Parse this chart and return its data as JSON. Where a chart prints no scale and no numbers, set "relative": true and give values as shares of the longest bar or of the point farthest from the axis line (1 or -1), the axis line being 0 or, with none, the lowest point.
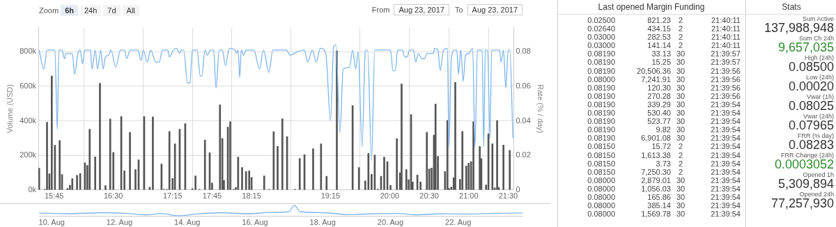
{
  "chart_data": [
    {
      "type": "bar",
      "ylabel": "Volume (USD)",
      "y2label": "Rate (% / day)",
      "xlim": [
        15.55,
        21.57
      ],
      "xticks": [
        {
          "value": 15.75,
          "label": "15:45"
        },
        {
          "value": 16.5,
          "label": "16:30"
        },
        {
          "value": 17.25,
          "label": "17:15"
        },
        {
          "value": 17.75,
          "label": "17:45"
        },
        {
          "value": 18.25,
          "label": "18:15"
        },
        {
          "value": 19.25,
          "label": "19:15"
        },
        {
          "value": 20,
          "label": "20:00"
        },
        {
          "value": 20.5,
          "label": "20:30"
        },
        {
          "value": 21,
          "label": "21:00"
        },
        {
          "value": 21.5,
          "label": "21:30"
        }
      ],
      "ylim": [
        0,
        940000
      ],
      "yticks": [
        {
          "value": 0,
          "label": "0k"
        },
        {
          "value": 200000,
          "label": "200k"
        },
        {
          "value": 400000,
          "label": "400k"
        },
        {
          "value": 600000,
          "label": "600k"
        },
        {
          "value": 800000,
          "label": "800k"
        }
      ],
      "y2lim": [
        0,
        0.094
      ],
      "y2ticks": [
        0,
        0.02,
        0.04,
        0.06,
        0.08
      ],
      "grid": true,
      "marker": "none",
      "annotations": [
        "Zoom",
        "6h",
        "24h",
        "7d",
        "All",
        "From",
        "Aug 23, 2017",
        "To",
        "Aug 23, 2017"
      ],
      "series": [
        {
          "type": "bar",
          "color": "#555555",
          "x": [
            15.56,
            15.63,
            15.66,
            15.69,
            15.72,
            15.76,
            15.82,
            15.85,
            15.92,
            15.95,
            15.98,
            16.04,
            16.08,
            16.14,
            16.17,
            16.2,
            16.27,
            16.33,
            16.4,
            16.46,
            16.5,
            16.6,
            16.64,
            16.71,
            16.78,
            16.82,
            16.89,
            16.96,
            17.0,
            17.11,
            17.14,
            17.18,
            17.21,
            17.25,
            17.28,
            17.34,
            17.41,
            17.5,
            17.54,
            17.59,
            17.66,
            17.72,
            17.75,
            17.85,
            17.88,
            17.9,
            17.95,
            17.98,
            18.02,
            18.05,
            18.08,
            18.13,
            18.18,
            18.22,
            18.25,
            18.41,
            18.47,
            18.53,
            18.58,
            18.64,
            18.7,
            18.8,
            18.86,
            18.92,
            19.03,
            19.13,
            19.2,
            19.33,
            19.53,
            19.61,
            19.69,
            19.73,
            19.77,
            19.81,
            19.85,
            19.89,
            19.93,
            19.97,
            20.01,
            20.09,
            20.13,
            20.15,
            20.21,
            20.24,
            20.27,
            20.29,
            20.35,
            20.39,
            20.47,
            20.5,
            20.53,
            20.56,
            20.58,
            20.61,
            20.7,
            20.73,
            20.75,
            20.78,
            20.81,
            20.83,
            20.89,
            20.92,
            20.97,
            21.0,
            21.03,
            21.06,
            21.14,
            21.16,
            21.22,
            21.25,
            21.3,
            21.33,
            21.36,
            21.38,
            21.44,
            21.52
          ],
          "values": [
            126000,
            4000,
            392000,
            94000,
            660000,
            259000,
            286000,
            90000,
            9000,
            27000,
            65000,
            85000,
            96000,
            157000,
            142000,
            352000,
            191000,
            618000,
            25000,
            411000,
            218000,
            425000,
            111000,
            333000,
            118000,
            174000,
            425000,
            16000,
            423000,
            150000,
            4000,
            4000,
            338000,
            66000,
            267000,
            352000,
            384000,
            8000,
            82000,
            4000,
            289000,
            216000,
            40000,
            493000,
            298000,
            55000,
            364000,
            395000,
            4000,
            14000,
            190000,
            130000,
            107000,
            111000,
            72000,
            82000,
            4000,
            337000,
            252000,
            412000,
            308000,
            4000,
            182000,
            204000,
            239000,
            267000,
            79000,
            805000,
            489000,
            130000,
            52000,
            211000,
            91000,
            202000,
            5000,
            79000,
            190000,
            163000,
            27000,
            297000,
            100000,
            614000,
            118000,
            59000,
            436000,
            46000,
            87000,
            46000,
            333000,
            122000,
            127000,
            317000,
            498000,
            194000,
            107000,
            403000,
            9000,
            17000,
            70000,
            623000,
            61000,
            338000,
            139000,
            155000,
            164000,
            395000,
            252000,
            181000,
            29000,
            325000,
            267000,
            12000,
            402000,
            14000,
            260000,
            230000
          ]
        },
        {
          "type": "line",
          "axis": "y2",
          "color": "#7cb5ec",
          "x": [
            15.56,
            15.62,
            15.66,
            15.76,
            15.79,
            15.81,
            15.85,
            15.88,
            15.9,
            15.98,
            16.01,
            16.05,
            16.08,
            16.11,
            16.14,
            16.21,
            16.23,
            16.27,
            16.3,
            16.34,
            16.37,
            16.4,
            16.44,
            16.47,
            16.53,
            16.59,
            16.64,
            16.67,
            16.71,
            16.81,
            16.85,
            16.88,
            16.93,
            16.97,
            17.04,
            17.08,
            17.12,
            17.19,
            17.21,
            17.26,
            17.3,
            17.34,
            17.36,
            17.39,
            17.44,
            17.47,
            17.5,
            17.56,
            17.6,
            17.62,
            17.66,
            17.69,
            17.73,
            17.77,
            17.8,
            17.84,
            17.88,
            17.92,
            17.96,
            17.98,
            18.04,
            18.06,
            18.08,
            18.1,
            18.12,
            18.15,
            18.18,
            18.28,
            18.35,
            18.4,
            18.47,
            18.52,
            18.69,
            18.74,
            18.83,
            18.92,
            18.96,
            19.02,
            19.07,
            19.12,
            19.19,
            19.25,
            19.29,
            19.32,
            19.37,
            19.41,
            19.49,
            19.53,
            19.57,
            19.6,
            19.65,
            19.69,
            19.72,
            19.77,
            19.81,
            19.97,
            20.01,
            20.04,
            20.07,
            20.1,
            20.16,
            20.19,
            20.22,
            20.25,
            20.3,
            20.33,
            20.36,
            20.41,
            20.44,
            20.47,
            20.55,
            20.57,
            20.61,
            20.64,
            20.68,
            20.73,
            20.75,
            20.78,
            20.82,
            20.85,
            20.87,
            20.9,
            20.93,
            20.96,
            21.0,
            21.05,
            21.08,
            21.11,
            21.17,
            21.19,
            21.21,
            21.24,
            21.27,
            21.29,
            21.39,
            21.41,
            21.44,
            21.47,
            21.5,
            21.52,
            21.56
          ],
          "values": [
            0.081,
            0.07,
            0.081,
            0.081,
            0.035,
            0.081,
            0.081,
            0.076,
            0.079,
            0.079,
            0.067,
            0.079,
            0.081,
            0.073,
            0.081,
            0.081,
            0.07,
            0.081,
            0.07,
            0.081,
            0.07,
            0.077,
            0.078,
            0.081,
            0.071,
            0.081,
            0.081,
            0.076,
            0.081,
            0.081,
            0.075,
            0.081,
            0.074,
            0.081,
            0.074,
            0.074,
            0.081,
            0.081,
            0.077,
            0.081,
            0.082,
            0.079,
            0.081,
            0.081,
            0.062,
            0.062,
            0.081,
            0.081,
            0.066,
            0.066,
            0.081,
            0.078,
            0.081,
            0.081,
            0.059,
            0.081,
            0.081,
            0.072,
            0.081,
            0.082,
            0.081,
            0.079,
            0.081,
            0.065,
            0.081,
            0.078,
            0.081,
            0.081,
            0.07,
            0.081,
            0.068,
            0.081,
            0.081,
            0.078,
            0.08,
            0.081,
            0.074,
            0.081,
            0.074,
            0.082,
            0.079,
            0.04,
            0.083,
            0.084,
            0.033,
            0.07,
            0.071,
            0.081,
            0.07,
            0.08,
            0.025,
            0.08,
            0.081,
            0.017,
            0.081,
            0.081,
            0.081,
            0.069,
            0.069,
            0.081,
            0.081,
            0.077,
            0.077,
            0.081,
            0.081,
            0.074,
            0.079,
            0.076,
            0.076,
            0.079,
            0.079,
            0.082,
            0.081,
            0.069,
            0.081,
            0.082,
            0.025,
            0.076,
            0.081,
            0.081,
            0.067,
            0.081,
            0.063,
            0.078,
            0.079,
            0.082,
            0.025,
            0.081,
            0.081,
            0.025,
            0.081,
            0.081,
            0.03,
            0.081,
            0.081,
            0.074,
            0.081,
            0.059,
            0.081,
            0.081,
            0.03
          ]
        }
      ]
    },
    {
      "type": "line",
      "relative": true,
      "xlim": [
        "2017-08-09T15:00",
        "2017-08-23T21:34"
      ],
      "xticks": [
        {
          "value": "2017-08-10",
          "label": "10. Aug"
        },
        {
          "value": "2017-08-12",
          "label": "12. Aug"
        },
        {
          "value": "2017-08-14",
          "label": "14. Aug"
        },
        {
          "value": "2017-08-16",
          "label": "16. Aug"
        },
        {
          "value": "2017-08-18",
          "label": "18. Aug"
        },
        {
          "value": "2017-08-20",
          "label": "20. Aug"
        },
        {
          "value": "2017-08-22",
          "label": "22. Aug"
        }
      ],
      "series": [
        {
          "color": "#7cb5ec",
          "x": [
            "2017-08-09T15:00",
            "2017-08-10T12:00",
            "2017-08-11T12:00",
            "2017-08-12T06:00",
            "2017-08-12T18:00",
            "2017-08-13T06:00",
            "2017-08-13T18:00",
            "2017-08-14T06:00",
            "2017-08-15T00:00",
            "2017-08-15T18:00",
            "2017-08-16T12:00",
            "2017-08-17T00:00",
            "2017-08-17T04:00",
            "2017-08-17T08:00",
            "2017-08-18T00:00",
            "2017-08-18T18:00",
            "2017-08-19T12:00",
            "2017-08-20T06:00",
            "2017-08-20T18:00",
            "2017-08-21T12:00",
            "2017-08-22T06:00",
            "2017-08-23T00:00",
            "2017-08-23T21:34"
          ],
          "values": [
            0.27,
            0.2,
            0.3,
            0.23,
            0.1,
            0.23,
            0,
            0.17,
            0.3,
            0.2,
            0.33,
            0.4,
            1,
            0.4,
            0.3,
            0.13,
            0.2,
            0.23,
            0.1,
            0.2,
            0.17,
            0.23,
            0.27
          ]
        }
      ]
    },
    {
      "type": "other",
      "title": "Last opened Margin Funding",
      "annotations": [
        "0.02500",
        "821.23",
        "2",
        "21:40:11",
        "0.02640",
        "434.15",
        "2",
        "21:40:11",
        "0.03000",
        "282.53",
        "2",
        "21:40:11",
        "0.03000",
        "141.14",
        "2",
        "21:40:11",
        "0.08190",
        "33.13",
        "30",
        "21:39:57",
        "0.08190",
        "15.25",
        "30",
        "21:39:57",
        "0.08190",
        "20,506.36",
        "30",
        "21:39:56",
        "0.08000",
        "7,241.91",
        "30",
        "21:39:56",
        "0.08190",
        "120.30",
        "30",
        "21:39:56",
        "0.08190",
        "270.28",
        "30",
        "21:39:56",
        "0.08190",
        "339.29",
        "30",
        "21:39:54",
        "0.08190",
        "530.40",
        "30",
        "21:39:54",
        "0.08190",
        "523.77",
        "30",
        "21:39:54",
        "0.08190",
        "9.82",
        "30",
        "21:39:54",
        "0.08190",
        "6,901.08",
        "30",
        "21:39:54",
        "0.08150",
        "15.72",
        "2",
        "21:39:54",
        "0.08150",
        "1,613.38",
        "2",
        "21:39:54",
        "0.08150",
        "3.73",
        "2",
        "21:39:54",
        "0.08150",
        "7,250.30",
        "2",
        "21:39:54",
        "0.08000",
        "2,879.01",
        "30",
        "21:39:54",
        "0.08000",
        "1,056.03",
        "30",
        "21:39:54",
        "0.08000",
        "165.86",
        "30",
        "21:39:54",
        "0.08000",
        "385.14",
        "30",
        "21:39:54",
        "0.08000",
        "1,569.78",
        "30",
        "21:39:54"
      ]
    },
    {
      "type": "other",
      "title": "Stats",
      "annotations": [
        "Sum Active",
        "137,988,948",
        "Sum Ch 24h",
        "9,657,035",
        "High (24h)",
        "0.08500",
        "Low (24h)",
        "0.00020",
        "Vwar (1h)",
        "0.08025",
        "Vwar (24h)",
        "0.07965",
        "FRR (% day)",
        "0.08283",
        "FRR Change (24h)",
        "0.0003052",
        "Opened 1h",
        "5,309,894",
        "Opened 24h",
        "77,257,930"
      ],
      "colors": [
        "#555555",
        "#333333",
        "#555555",
        "#2e8b2e",
        "#555555",
        "#333333",
        "#555555",
        "#333333",
        "#555555",
        "#333333",
        "#555555",
        "#333333",
        "#555555",
        "#333333",
        "#555555",
        "#2e8b2e",
        "#555555",
        "#333333",
        "#555555",
        "#333333"
      ]
    }
  ]
}
